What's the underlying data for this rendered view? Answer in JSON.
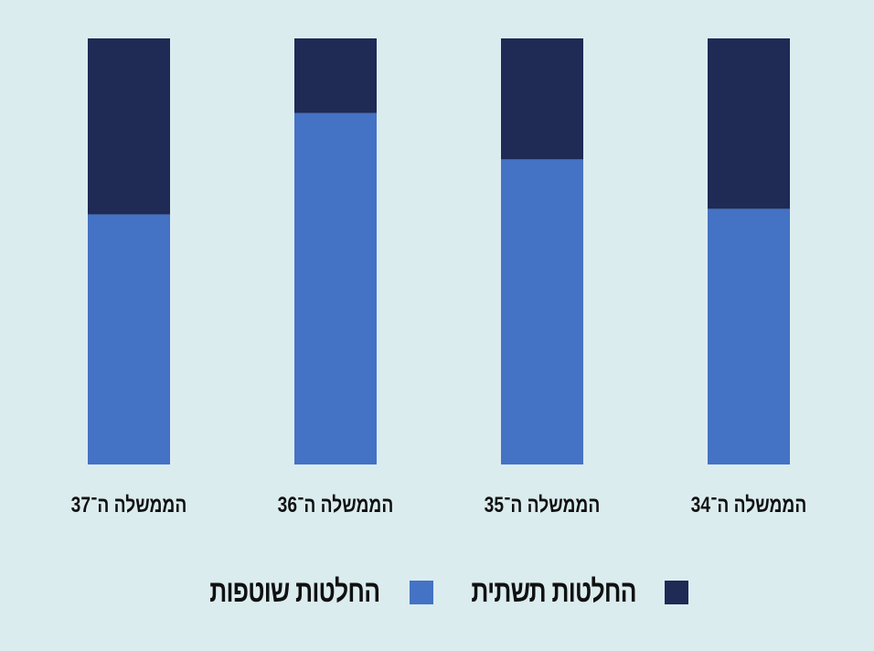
{
  "chart_data": {
    "type": "bar",
    "stacked": true,
    "title": "",
    "xlabel": "",
    "ylabel": "",
    "ylim": [
      0,
      100
    ],
    "grid": false,
    "legend_position": "bottom",
    "categories": [
      "הממשלה ה־34",
      "הממשלה ה־35",
      "הממשלה ה־36",
      "הממשלה ה־37"
    ],
    "category_order": "right-to-left",
    "series": [
      {
        "name": "החלטות שוטפות",
        "color": "#4472c4",
        "values": [
          60,
          71.6,
          82.5,
          58.7
        ]
      },
      {
        "name": "החלטות תשתית",
        "color": "#1f2a55",
        "values": [
          40,
          28.4,
          17.5,
          41.3
        ]
      }
    ]
  }
}
